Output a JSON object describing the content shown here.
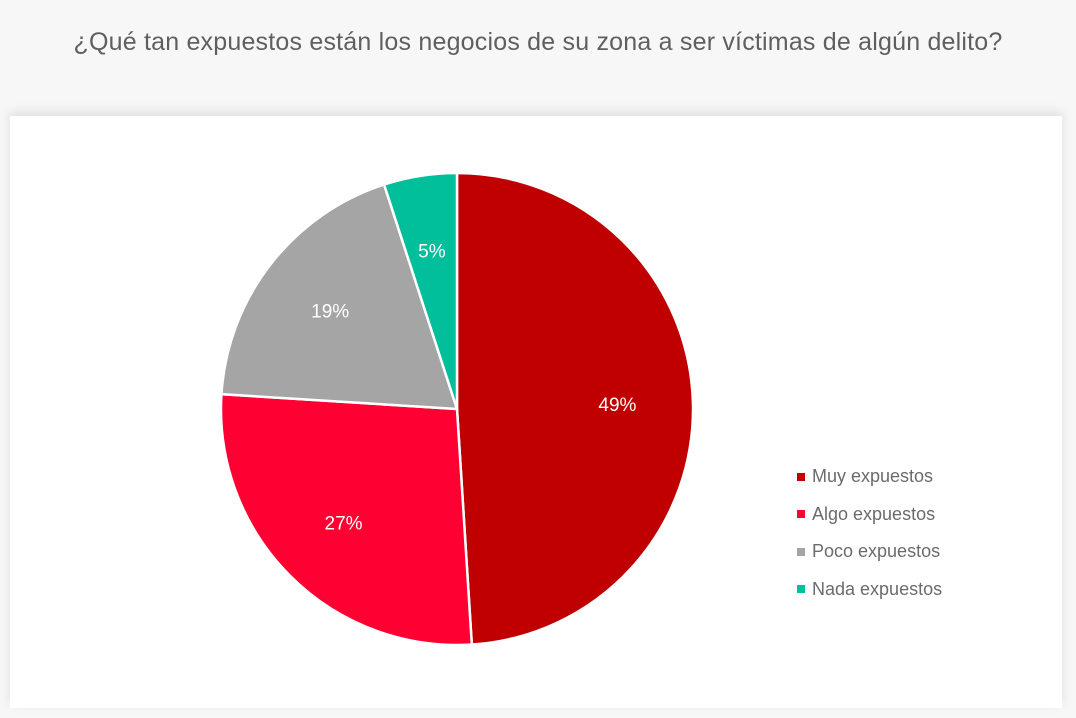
{
  "title": "¿Qué tan expuestos están los negocios de su zona a ser víctimas de algún delito?",
  "chart_data": {
    "type": "pie",
    "title": "¿Qué tan expuestos están los negocios de su zona a ser víctimas de algún delito?",
    "categories": [
      "Muy expuestos",
      "Algo expuestos",
      "Poco expuestos",
      "Nada expuestos"
    ],
    "values": [
      49,
      27,
      19,
      5
    ],
    "labels": [
      "49%",
      "27%",
      "19%",
      "5%"
    ],
    "colors": [
      "#c00000",
      "#ff0033",
      "#a5a5a5",
      "#00bf9a"
    ],
    "start_angle": "12 o'clock, clockwise",
    "legend_position": "right"
  },
  "legend": {
    "items": [
      {
        "label": "Muy expuestos",
        "color": "#c00000"
      },
      {
        "label": "Algo expuestos",
        "color": "#ff0033"
      },
      {
        "label": "Poco expuestos",
        "color": "#a5a5a5"
      },
      {
        "label": "Nada expuestos",
        "color": "#00bf9a"
      }
    ]
  }
}
